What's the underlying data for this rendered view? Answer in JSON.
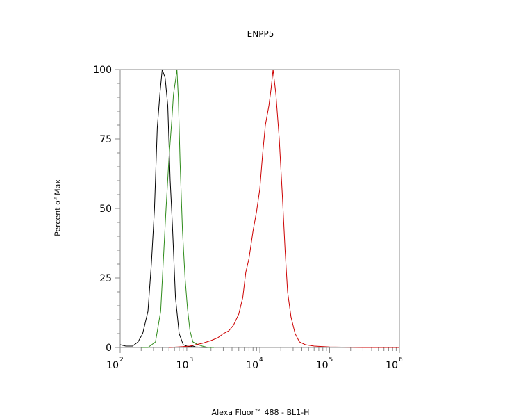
{
  "chart_data": {
    "type": "line",
    "title": "ENPP5",
    "xlabel": "Alexa Fluor™ 488 - BL1-H",
    "ylabel": "Percent of Max",
    "x_scale": "log",
    "xlim": [
      100,
      1000000
    ],
    "ylim": [
      0,
      100
    ],
    "y_ticks": [
      "0",
      "25",
      "50",
      "75",
      "100"
    ],
    "x_ticks": [
      {
        "base": "10",
        "exp": "2",
        "value": 100
      },
      {
        "base": "10",
        "exp": "3",
        "value": 1000
      },
      {
        "base": "10",
        "exp": "4",
        "value": 10000
      },
      {
        "base": "10",
        "exp": "5",
        "value": 100000
      },
      {
        "base": "10",
        "exp": "6",
        "value": 1000000
      }
    ],
    "grid": false,
    "series": [
      {
        "color": "#000000",
        "x": [
          100,
          120,
          150,
          180,
          210,
          250,
          280,
          310,
          340,
          370,
          400,
          440,
          480,
          520,
          560,
          620,
          700,
          800,
          900,
          1000,
          1100,
          1200,
          1400,
          1700,
          2000
        ],
        "y": [
          1,
          0.5,
          0.5,
          2,
          5,
          13,
          30,
          50,
          79,
          91,
          100,
          97,
          87,
          60,
          44,
          18,
          5,
          1,
          0.5,
          0.2,
          0.5,
          0.2,
          0.1,
          0,
          0
        ]
      },
      {
        "color": "#2e8b1a",
        "x": [
          200,
          250,
          320,
          380,
          450,
          500,
          550,
          580,
          620,
          650,
          680,
          720,
          780,
          850,
          920,
          1000,
          1100,
          1300,
          1500,
          1800,
          2200
        ],
        "y": [
          0,
          0,
          2,
          13,
          48,
          68,
          82,
          91,
          96,
          100,
          90,
          67,
          42,
          25,
          14,
          6,
          2,
          1,
          0.5,
          0,
          0
        ]
      },
      {
        "color": "#cc0000",
        "x": [
          500,
          800,
          1000,
          1200,
          1500,
          2000,
          2500,
          3000,
          3600,
          4200,
          5000,
          5700,
          6300,
          7000,
          8000,
          9000,
          10000,
          11000,
          12000,
          13500,
          14500,
          15500,
          17000,
          19000,
          21000,
          23000,
          25000,
          28000,
          32000,
          37000,
          45000,
          60000,
          100000,
          300000,
          1000000
        ],
        "y": [
          0,
          0.3,
          0.5,
          1,
          1.5,
          2.5,
          3.5,
          5,
          6,
          8,
          12,
          18,
          27,
          32,
          42,
          49,
          57,
          70,
          80,
          87,
          93,
          100,
          91,
          75,
          55,
          35,
          20,
          11,
          5,
          2,
          1,
          0.5,
          0.2,
          0,
          0
        ]
      }
    ]
  }
}
